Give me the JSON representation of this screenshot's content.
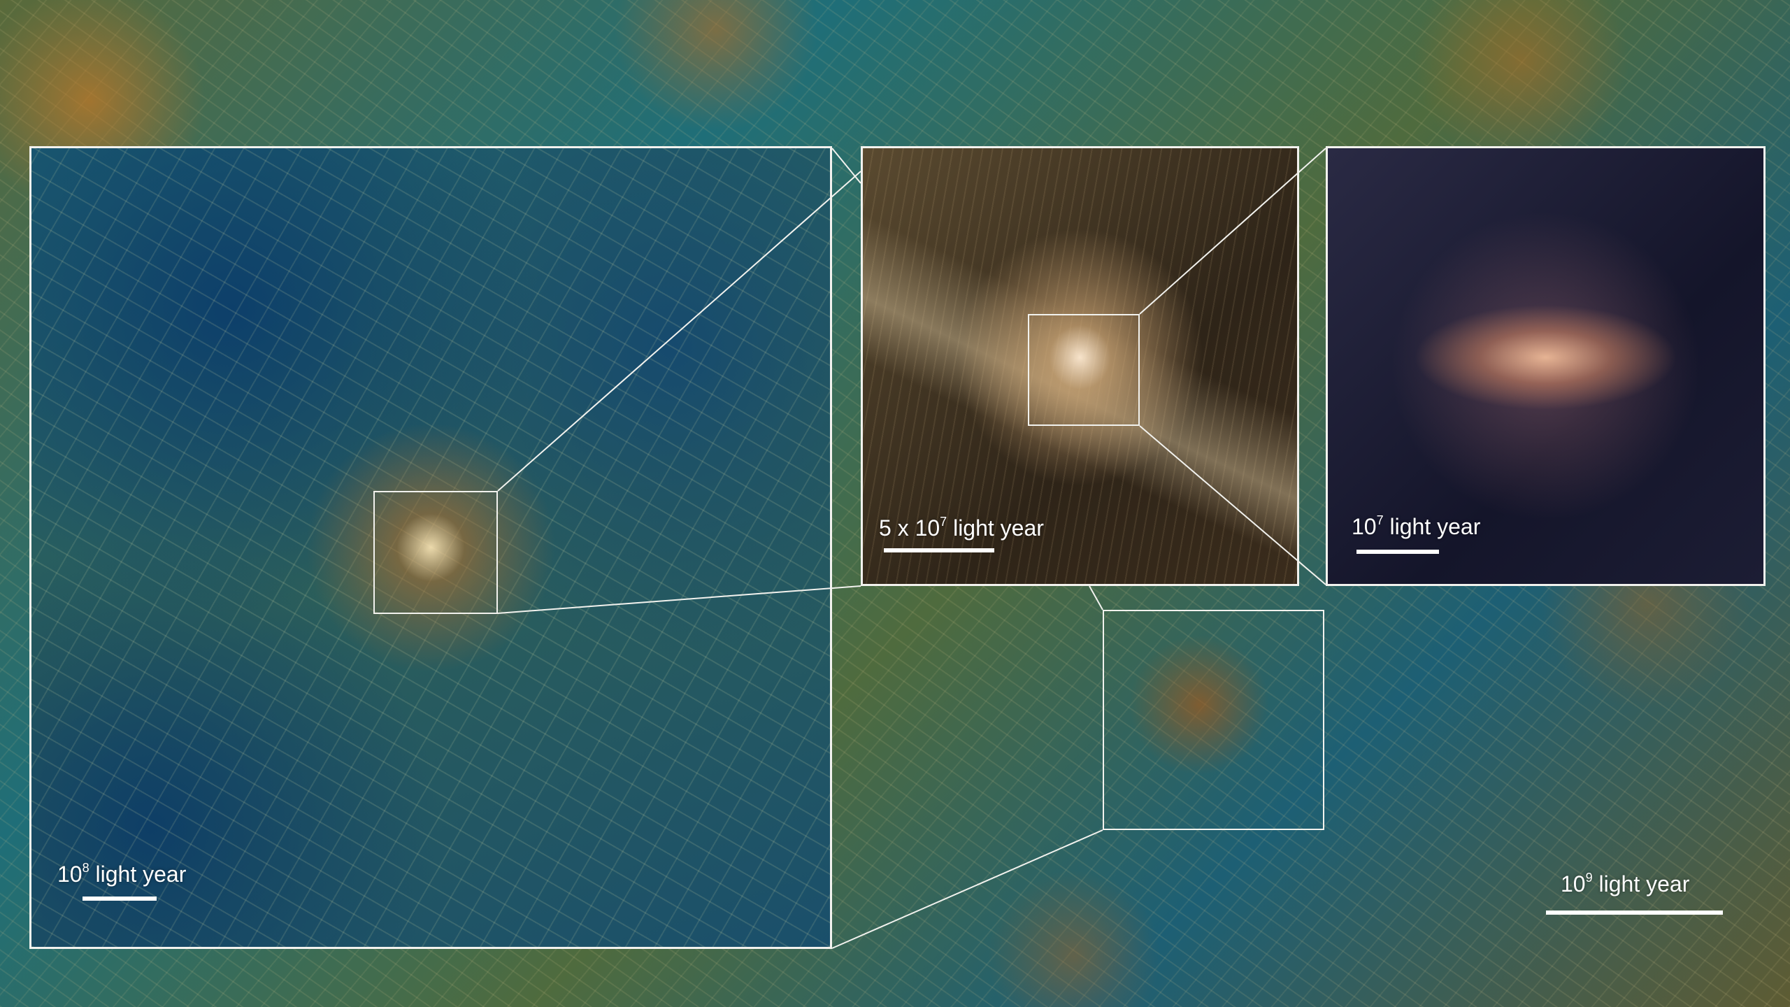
{
  "scale_bars": {
    "panel_1": {
      "base": "10",
      "exp": "8",
      "unit": "light year"
    },
    "panel_2": {
      "prefix": "5 x ",
      "base": "10",
      "exp": "7",
      "unit": "light year"
    },
    "panel_3": {
      "base": "10",
      "exp": "7",
      "unit": "light year"
    },
    "background": {
      "base": "10",
      "exp": "9",
      "unit": "light year"
    }
  },
  "colors": {
    "frame": "#f2f2ee",
    "filament_gold": "#d8c08a",
    "void_blue": "#0e3e66"
  }
}
